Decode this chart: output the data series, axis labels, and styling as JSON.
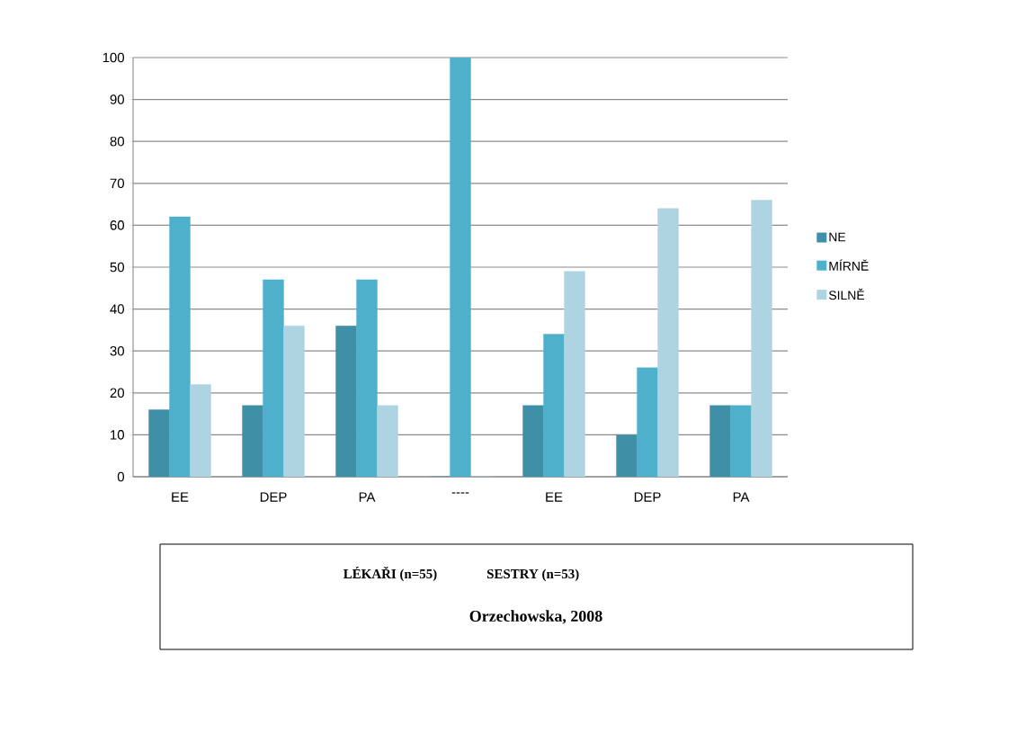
{
  "chart_data": {
    "type": "bar",
    "categories": [
      "EE",
      "DEP",
      "PA",
      "----",
      "EE",
      "DEP",
      "PA"
    ],
    "series": [
      {
        "name": "NE",
        "color": "#3f8fa6",
        "values": [
          16,
          17,
          36,
          0,
          17,
          10,
          17
        ]
      },
      {
        "name": "MÍRNĚ",
        "color": "#4fb0cc",
        "values": [
          62,
          47,
          47,
          100,
          34,
          26,
          17
        ]
      },
      {
        "name": "SILNĚ",
        "color": "#aed4e2",
        "values": [
          22,
          36,
          17,
          0,
          49,
          64,
          66
        ]
      }
    ],
    "ylim": [
      0,
      100
    ],
    "yticks": [
      0,
      10,
      20,
      30,
      40,
      50,
      60,
      70,
      80,
      90,
      100
    ],
    "grid": "y",
    "legend": "right",
    "annotations": [
      "LÉKAŘI (n=55)",
      "SESTRY (n=53)",
      "Orzechowska, 2008"
    ]
  }
}
